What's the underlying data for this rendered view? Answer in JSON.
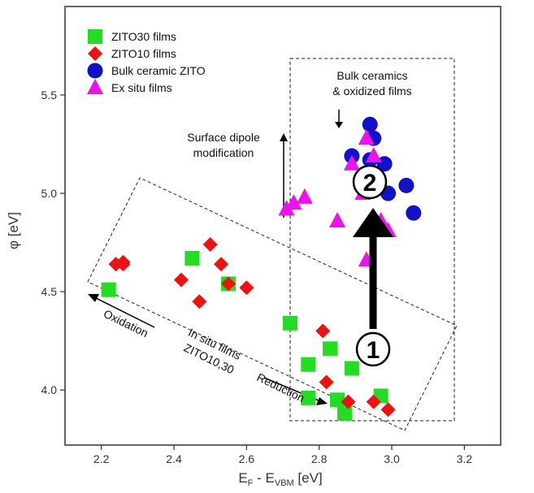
{
  "chart_data": {
    "type": "scatter",
    "xlabel": "E_F - E_VBM [eV]",
    "xlabel_parts": {
      "e1": "E",
      "s1": "F",
      "mid": " - E",
      "s2": "VBM",
      "unit": " [eV]"
    },
    "ylabel": "φ [eV]",
    "xlim": [
      2.1,
      3.3
    ],
    "ylim": [
      3.72,
      5.95
    ],
    "xticks": [
      2.2,
      2.4,
      2.6,
      2.8,
      3.0,
      3.2
    ],
    "xtick_labels": [
      "2.2",
      "2.4",
      "2.6",
      "2.8",
      "3.0",
      "3.2"
    ],
    "yticks": [
      4.0,
      4.5,
      5.0,
      5.5
    ],
    "ytick_labels": [
      "4.0",
      "4.5",
      "5.0",
      "5.5"
    ],
    "grid": false,
    "legend_position": "top-left",
    "series": [
      {
        "name": "ZITO30 films",
        "marker": "square",
        "color": "#22dd22",
        "points": [
          [
            2.22,
            4.51
          ],
          [
            2.45,
            4.67
          ],
          [
            2.55,
            4.54
          ],
          [
            2.72,
            4.34
          ],
          [
            2.77,
            4.13
          ],
          [
            2.77,
            3.96
          ],
          [
            2.83,
            4.21
          ],
          [
            2.85,
            3.95
          ],
          [
            2.87,
            3.88
          ],
          [
            2.95,
            4.21
          ],
          [
            2.97,
            3.97
          ],
          [
            2.89,
            4.11
          ]
        ]
      },
      {
        "name": "ZITO10 films",
        "marker": "diamond",
        "color": "#ee1111",
        "points": [
          [
            2.24,
            4.64
          ],
          [
            2.26,
            4.65
          ],
          [
            2.26,
            4.64
          ],
          [
            2.42,
            4.56
          ],
          [
            2.47,
            4.45
          ],
          [
            2.5,
            4.74
          ],
          [
            2.53,
            4.64
          ],
          [
            2.55,
            4.54
          ],
          [
            2.6,
            4.52
          ],
          [
            2.81,
            4.3
          ],
          [
            2.82,
            4.04
          ],
          [
            2.88,
            3.94
          ],
          [
            2.95,
            3.94
          ],
          [
            2.99,
            3.9
          ]
        ]
      },
      {
        "name": "Bulk ceramic ZITO",
        "marker": "circle",
        "color": "#1111cc",
        "points": [
          [
            2.89,
            5.19
          ],
          [
            2.94,
            5.35
          ],
          [
            2.95,
            5.28
          ],
          [
            2.94,
            5.17
          ],
          [
            2.98,
            5.15
          ],
          [
            2.99,
            5.0
          ],
          [
            3.04,
            5.04
          ],
          [
            3.06,
            4.9
          ]
        ]
      },
      {
        "name": "Ex situ films",
        "marker": "triangle",
        "color": "#ee11ee",
        "points": [
          [
            2.71,
            4.92
          ],
          [
            2.73,
            4.95
          ],
          [
            2.76,
            4.98
          ],
          [
            2.85,
            4.86
          ],
          [
            2.89,
            5.15
          ],
          [
            2.92,
            5.0
          ],
          [
            2.93,
            5.28
          ],
          [
            2.95,
            5.19
          ],
          [
            2.93,
            4.66
          ],
          [
            2.97,
            4.86
          ],
          [
            2.99,
            4.81
          ]
        ]
      }
    ],
    "annotations": {
      "box_right_line1": "Bulk ceramics",
      "box_right_line2": "& oxidized films",
      "dipole_line1": "Surface dipole",
      "dipole_line2": "modification",
      "oxidation": "Oxidation",
      "insitu_line1": "In situ films",
      "insitu_line2": "ZITO10,30",
      "reduction": "Reduction",
      "circle_1": "1",
      "circle_2": "2"
    }
  }
}
